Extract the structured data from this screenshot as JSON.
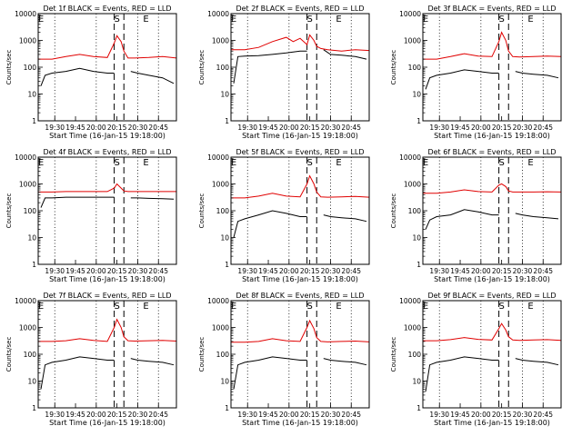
{
  "figure": {
    "ylabel": "Counts/sec",
    "xlabel": "Start Time (16-Jan-15 19:18:00)",
    "xtick_labels": [
      "19:30",
      "19:45",
      "20:00",
      "20:15",
      "20:30",
      "20:45"
    ],
    "ytick_labels": [
      "1",
      "10",
      "100",
      "1000",
      "10000"
    ],
    "markers": [
      "E",
      "S",
      "E"
    ],
    "colors": {
      "events": "#000000",
      "lld": "#e00000",
      "axes": "#000000"
    }
  },
  "chart_data": [
    {
      "type": "line",
      "title": "Det 1f BLACK = Events, RED = LLD",
      "yscale": "log",
      "ylim": [
        1,
        10000
      ],
      "xlim_minutes": [
        0,
        100
      ],
      "grid": false,
      "series": [
        {
          "name": "BLACK = Events",
          "color": "#000000",
          "x": [
            2,
            5,
            10,
            20,
            30,
            40,
            50,
            55,
            58,
            62,
            67,
            72,
            80,
            90,
            98
          ],
          "y": [
            20,
            50,
            60,
            70,
            90,
            70,
            60,
            60,
            null,
            null,
            70,
            60,
            50,
            40,
            25
          ]
        },
        {
          "name": "RED = LLD",
          "color": "#e00000",
          "x": [
            0,
            10,
            20,
            30,
            40,
            50,
            55,
            57,
            60,
            62,
            65,
            70,
            80,
            90,
            100
          ],
          "y": [
            200,
            200,
            250,
            300,
            250,
            230,
            800,
            1500,
            900,
            400,
            220,
            220,
            230,
            250,
            220
          ]
        }
      ]
    },
    {
      "type": "line",
      "title": "Det 2f BLACK = Events, RED = LLD",
      "yscale": "log",
      "ylim": [
        1,
        10000
      ],
      "xlim_minutes": [
        0,
        100
      ],
      "grid": false,
      "series": [
        {
          "name": "BLACK = Events",
          "color": "#000000",
          "x": [
            2,
            5,
            10,
            20,
            30,
            40,
            50,
            55,
            58,
            62,
            67,
            72,
            80,
            90,
            98
          ],
          "y": [
            25,
            250,
            260,
            270,
            300,
            340,
            400,
            400,
            null,
            null,
            450,
            300,
            280,
            250,
            200
          ]
        },
        {
          "name": "RED = LLD",
          "color": "#e00000",
          "x": [
            0,
            10,
            20,
            30,
            40,
            45,
            50,
            55,
            57,
            60,
            62,
            65,
            70,
            80,
            90,
            100
          ],
          "y": [
            450,
            450,
            550,
            900,
            1300,
            900,
            1200,
            700,
            1600,
            1000,
            600,
            500,
            450,
            400,
            450,
            420
          ]
        }
      ]
    },
    {
      "type": "line",
      "title": "Det 3f BLACK = Events, RED = LLD",
      "yscale": "log",
      "ylim": [
        1,
        10000
      ],
      "xlim_minutes": [
        0,
        100
      ],
      "grid": false,
      "series": [
        {
          "name": "BLACK = Events",
          "color": "#000000",
          "x": [
            2,
            5,
            10,
            20,
            30,
            40,
            50,
            55,
            58,
            62,
            67,
            72,
            80,
            90,
            98
          ],
          "y": [
            15,
            40,
            50,
            60,
            80,
            70,
            60,
            60,
            null,
            null,
            70,
            60,
            55,
            50,
            40
          ]
        },
        {
          "name": "RED = LLD",
          "color": "#e00000",
          "x": [
            0,
            10,
            20,
            30,
            40,
            50,
            55,
            57,
            60,
            62,
            65,
            70,
            80,
            90,
            100
          ],
          "y": [
            200,
            200,
            250,
            320,
            260,
            250,
            900,
            2000,
            1000,
            400,
            250,
            240,
            250,
            260,
            250
          ]
        }
      ]
    },
    {
      "type": "line",
      "title": "Det 4f BLACK = Events, RED = LLD",
      "yscale": "log",
      "ylim": [
        1,
        10000
      ],
      "xlim_minutes": [
        0,
        100
      ],
      "grid": false,
      "series": [
        {
          "name": "BLACK = Events",
          "color": "#000000",
          "x": [
            2,
            5,
            10,
            20,
            30,
            40,
            50,
            55,
            58,
            62,
            67,
            72,
            80,
            90,
            98
          ],
          "y": [
            130,
            300,
            300,
            320,
            320,
            320,
            320,
            320,
            null,
            null,
            300,
            300,
            290,
            280,
            270
          ]
        },
        {
          "name": "RED = LLD",
          "color": "#e00000",
          "x": [
            0,
            10,
            20,
            30,
            40,
            50,
            55,
            57,
            60,
            62,
            65,
            70,
            80,
            90,
            100
          ],
          "y": [
            500,
            500,
            520,
            520,
            520,
            520,
            700,
            1000,
            700,
            550,
            520,
            520,
            520,
            520,
            520
          ]
        }
      ]
    },
    {
      "type": "line",
      "title": "Det 5f BLACK = Events, RED = LLD",
      "yscale": "log",
      "ylim": [
        1,
        10000
      ],
      "xlim_minutes": [
        0,
        100
      ],
      "grid": false,
      "series": [
        {
          "name": "BLACK = Events",
          "color": "#000000",
          "x": [
            2,
            5,
            10,
            20,
            30,
            40,
            50,
            55,
            58,
            62,
            67,
            72,
            80,
            90,
            98
          ],
          "y": [
            10,
            40,
            50,
            70,
            100,
            80,
            60,
            60,
            null,
            null,
            70,
            60,
            55,
            50,
            40
          ]
        },
        {
          "name": "RED = LLD",
          "color": "#e00000",
          "x": [
            0,
            10,
            20,
            30,
            40,
            50,
            55,
            57,
            60,
            62,
            65,
            70,
            80,
            90,
            100
          ],
          "y": [
            300,
            300,
            350,
            450,
            350,
            330,
            1000,
            2000,
            1000,
            500,
            330,
            320,
            330,
            340,
            320
          ]
        }
      ]
    },
    {
      "type": "line",
      "title": "Det 6f BLACK = Events, RED = LLD",
      "yscale": "log",
      "ylim": [
        1,
        10000
      ],
      "xlim_minutes": [
        0,
        100
      ],
      "grid": false,
      "series": [
        {
          "name": "BLACK = Events",
          "color": "#000000",
          "x": [
            2,
            5,
            10,
            20,
            30,
            40,
            50,
            55,
            58,
            62,
            67,
            72,
            80,
            90,
            98
          ],
          "y": [
            20,
            45,
            60,
            70,
            110,
            90,
            70,
            70,
            null,
            null,
            80,
            70,
            60,
            55,
            50
          ]
        },
        {
          "name": "RED = LLD",
          "color": "#e00000",
          "x": [
            0,
            10,
            20,
            30,
            40,
            50,
            55,
            57,
            60,
            62,
            65,
            70,
            80,
            90,
            100
          ],
          "y": [
            450,
            450,
            500,
            600,
            520,
            500,
            900,
            1000,
            800,
            550,
            500,
            500,
            500,
            510,
            500
          ]
        }
      ]
    },
    {
      "type": "line",
      "title": "Det 7f BLACK = Events, RED = LLD",
      "yscale": "log",
      "ylim": [
        1,
        10000
      ],
      "xlim_minutes": [
        0,
        100
      ],
      "grid": false,
      "series": [
        {
          "name": "BLACK = Events",
          "color": "#000000",
          "x": [
            2,
            5,
            10,
            20,
            30,
            40,
            50,
            55,
            58,
            62,
            67,
            72,
            80,
            90,
            98
          ],
          "y": [
            5,
            40,
            50,
            60,
            80,
            70,
            60,
            60,
            null,
            null,
            70,
            60,
            55,
            50,
            40
          ]
        },
        {
          "name": "RED = LLD",
          "color": "#e00000",
          "x": [
            0,
            10,
            20,
            30,
            40,
            50,
            55,
            57,
            60,
            62,
            65,
            70,
            80,
            90,
            100
          ],
          "y": [
            300,
            300,
            320,
            380,
            330,
            300,
            1000,
            2000,
            1000,
            450,
            320,
            310,
            320,
            330,
            310
          ]
        }
      ]
    },
    {
      "type": "line",
      "title": "Det 8f BLACK = Events, RED = LLD",
      "yscale": "log",
      "ylim": [
        1,
        10000
      ],
      "xlim_minutes": [
        0,
        100
      ],
      "grid": false,
      "series": [
        {
          "name": "BLACK = Events",
          "color": "#000000",
          "x": [
            2,
            5,
            10,
            20,
            30,
            40,
            50,
            55,
            58,
            62,
            67,
            72,
            80,
            90,
            98
          ],
          "y": [
            5,
            40,
            50,
            60,
            80,
            70,
            60,
            60,
            null,
            null,
            70,
            60,
            55,
            50,
            40
          ]
        },
        {
          "name": "RED = LLD",
          "color": "#e00000",
          "x": [
            0,
            10,
            20,
            30,
            40,
            50,
            55,
            57,
            60,
            62,
            65,
            70,
            80,
            90,
            100
          ],
          "y": [
            280,
            280,
            300,
            380,
            320,
            300,
            1000,
            1800,
            900,
            420,
            300,
            290,
            300,
            310,
            290
          ]
        }
      ]
    },
    {
      "type": "line",
      "title": "Det 9f BLACK = Events, RED = LLD",
      "yscale": "log",
      "ylim": [
        1,
        10000
      ],
      "xlim_minutes": [
        0,
        100
      ],
      "grid": false,
      "series": [
        {
          "name": "BLACK = Events",
          "color": "#000000",
          "x": [
            2,
            5,
            10,
            20,
            30,
            40,
            50,
            55,
            58,
            62,
            67,
            72,
            80,
            90,
            98
          ],
          "y": [
            4,
            40,
            50,
            60,
            80,
            70,
            60,
            60,
            null,
            null,
            70,
            60,
            55,
            50,
            40
          ]
        },
        {
          "name": "RED = LLD",
          "color": "#e00000",
          "x": [
            0,
            10,
            20,
            30,
            40,
            50,
            55,
            57,
            60,
            62,
            65,
            70,
            80,
            90,
            100
          ],
          "y": [
            320,
            320,
            350,
            420,
            360,
            340,
            900,
            1400,
            800,
            450,
            340,
            330,
            340,
            350,
            330
          ]
        }
      ]
    }
  ]
}
